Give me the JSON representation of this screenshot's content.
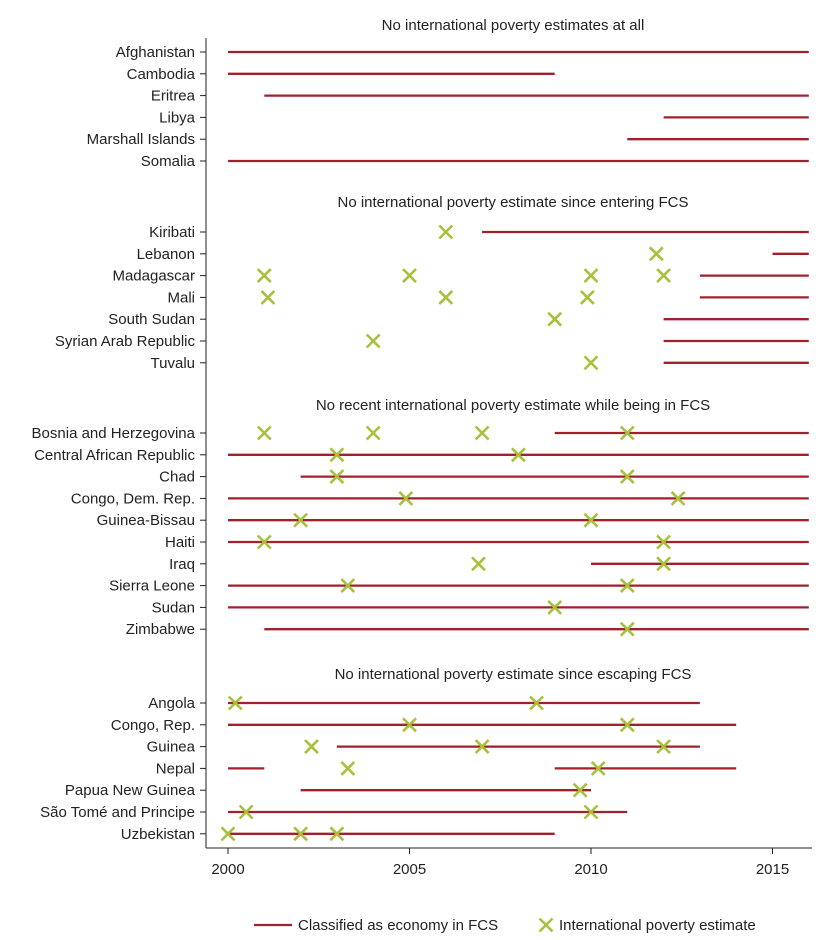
{
  "colors": {
    "fcs_line": "#A0212B",
    "poverty_marker": "#A8C13C",
    "axis": "#222222"
  },
  "chart_data": {
    "type": "timeline",
    "x_ticks": [
      2000,
      2005,
      2010,
      2015
    ],
    "x_range": [
      2000,
      2016
    ],
    "legend": {
      "fcs_label": "Classified as economy in FCS",
      "estimate_label": "International poverty estimate",
      "placement": "bottom"
    },
    "sections": [
      {
        "title": "No international poverty estimates at all",
        "countries": [
          {
            "name": "Afghanistan",
            "fcs": [
              [
                2000,
                2016
              ]
            ],
            "estimates": []
          },
          {
            "name": "Cambodia",
            "fcs": [
              [
                2000,
                2009
              ]
            ],
            "estimates": []
          },
          {
            "name": "Eritrea",
            "fcs": [
              [
                2001,
                2016
              ]
            ],
            "estimates": []
          },
          {
            "name": "Libya",
            "fcs": [
              [
                2012,
                2016
              ]
            ],
            "estimates": []
          },
          {
            "name": "Marshall Islands",
            "fcs": [
              [
                2011,
                2016
              ]
            ],
            "estimates": []
          },
          {
            "name": "Somalia",
            "fcs": [
              [
                2000,
                2016
              ]
            ],
            "estimates": []
          }
        ]
      },
      {
        "title": "No international poverty estimate since entering FCS",
        "countries": [
          {
            "name": "Kiribati",
            "fcs": [
              [
                2007,
                2016
              ]
            ],
            "estimates": [
              2006
            ]
          },
          {
            "name": "Lebanon",
            "fcs": [
              [
                2015,
                2016
              ]
            ],
            "estimates": [
              2011.8
            ]
          },
          {
            "name": "Madagascar",
            "fcs": [
              [
                2013,
                2016
              ]
            ],
            "estimates": [
              2001,
              2005,
              2010,
              2012
            ]
          },
          {
            "name": "Mali",
            "fcs": [
              [
                2013,
                2016
              ]
            ],
            "estimates": [
              2001.1,
              2006,
              2009.9
            ]
          },
          {
            "name": "South Sudan",
            "fcs": [
              [
                2012,
                2016
              ]
            ],
            "estimates": [
              2009
            ]
          },
          {
            "name": "Syrian Arab Republic",
            "fcs": [
              [
                2012,
                2016
              ]
            ],
            "estimates": [
              2004
            ]
          },
          {
            "name": "Tuvalu",
            "fcs": [
              [
                2012,
                2016
              ]
            ],
            "estimates": [
              2010
            ]
          }
        ]
      },
      {
        "title": "No recent international poverty estimate while being in FCS",
        "countries": [
          {
            "name": "Bosnia and Herzegovina",
            "fcs": [
              [
                2009,
                2016
              ]
            ],
            "estimates": [
              2001,
              2004,
              2007,
              2011
            ]
          },
          {
            "name": "Central African Republic",
            "fcs": [
              [
                2000,
                2016
              ]
            ],
            "estimates": [
              2003,
              2008
            ]
          },
          {
            "name": "Chad",
            "fcs": [
              [
                2002,
                2016
              ]
            ],
            "estimates": [
              2003,
              2011
            ]
          },
          {
            "name": "Congo, Dem. Rep.",
            "fcs": [
              [
                2000,
                2016
              ]
            ],
            "estimates": [
              2004.9,
              2012.4
            ]
          },
          {
            "name": "Guinea-Bissau",
            "fcs": [
              [
                2000,
                2016
              ]
            ],
            "estimates": [
              2002,
              2010
            ]
          },
          {
            "name": "Haiti",
            "fcs": [
              [
                2000,
                2016
              ]
            ],
            "estimates": [
              2001,
              2012
            ]
          },
          {
            "name": "Iraq",
            "fcs": [
              [
                2010,
                2016
              ]
            ],
            "estimates": [
              2006.9,
              2012
            ]
          },
          {
            "name": "Sierra Leone",
            "fcs": [
              [
                2000,
                2016
              ]
            ],
            "estimates": [
              2003.3,
              2011
            ]
          },
          {
            "name": "Sudan",
            "fcs": [
              [
                2000,
                2016
              ]
            ],
            "estimates": [
              2009
            ]
          },
          {
            "name": "Zimbabwe",
            "fcs": [
              [
                2001,
                2016
              ]
            ],
            "estimates": [
              2011
            ]
          }
        ]
      },
      {
        "title": "No international poverty estimate since escaping FCS",
        "countries": [
          {
            "name": "Angola",
            "fcs": [
              [
                2000,
                2013
              ]
            ],
            "estimates": [
              2000.2,
              2008.5
            ]
          },
          {
            "name": "Congo, Rep.",
            "fcs": [
              [
                2000,
                2014
              ]
            ],
            "estimates": [
              2005,
              2011
            ]
          },
          {
            "name": "Guinea",
            "fcs": [
              [
                2003,
                2013
              ]
            ],
            "estimates": [
              2002.3,
              2007,
              2012
            ]
          },
          {
            "name": "Nepal",
            "fcs": [
              [
                2000,
                2001
              ],
              [
                2009,
                2014
              ]
            ],
            "estimates": [
              2003.3,
              2010.2
            ]
          },
          {
            "name": "Papua New Guinea",
            "fcs": [
              [
                2002,
                2010
              ]
            ],
            "estimates": [
              2009.7
            ]
          },
          {
            "name": "São Tomé and Principe",
            "fcs": [
              [
                2000,
                2011
              ]
            ],
            "estimates": [
              2000.5,
              2010
            ]
          },
          {
            "name": "Uzbekistan",
            "fcs": [
              [
                2000,
                2009
              ]
            ],
            "estimates": [
              2000,
              2002,
              2003
            ]
          }
        ]
      }
    ]
  }
}
